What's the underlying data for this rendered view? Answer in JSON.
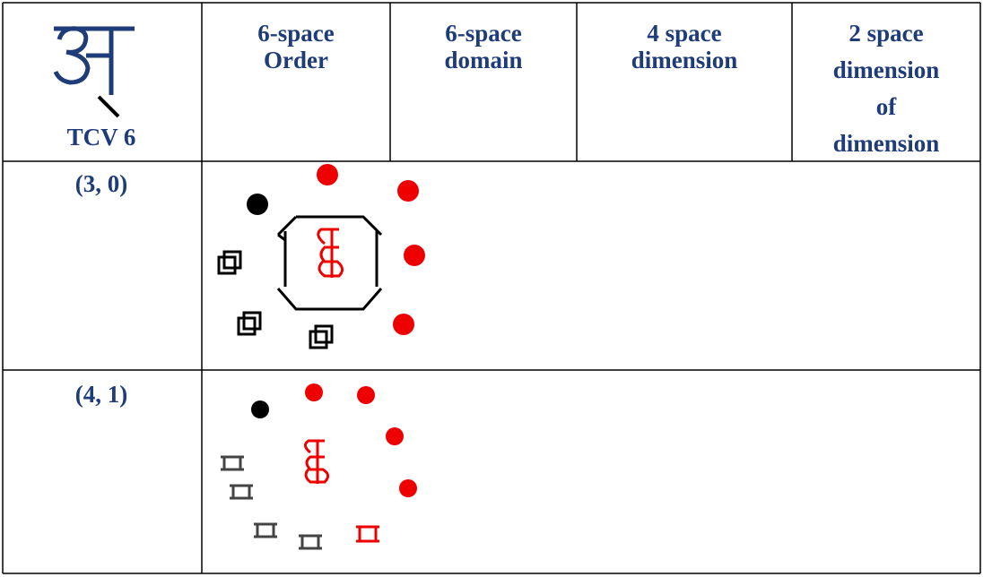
{
  "header": {
    "corner_label": "TCV 6",
    "columns": [
      {
        "lines": [
          "6-space",
          "Order"
        ]
      },
      {
        "lines": [
          "6-space",
          "domain"
        ]
      },
      {
        "lines": [
          "4 space",
          "dimension"
        ]
      },
      {
        "lines": [
          "2 space",
          "dimension",
          "of",
          "dimension"
        ]
      }
    ]
  },
  "table": {
    "rows": [
      {
        "label": "(3, 0)"
      },
      {
        "label": "(4, 1)"
      }
    ]
  }
}
